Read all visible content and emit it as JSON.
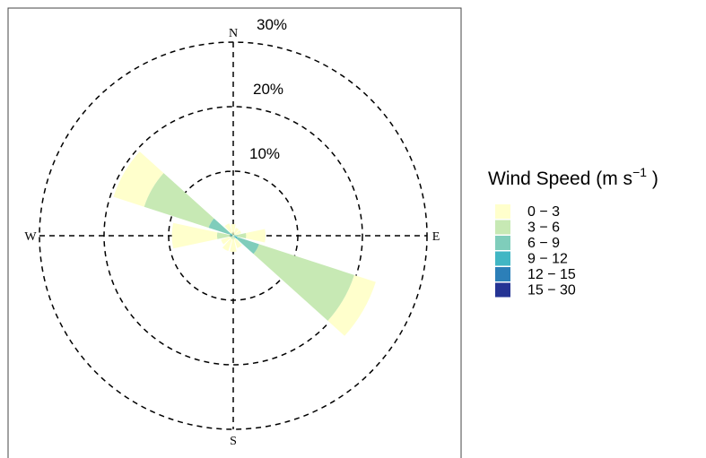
{
  "chart_data": {
    "type": "windrose",
    "compass": {
      "n": "N",
      "e": "E",
      "s": "S",
      "w": "W"
    },
    "rings": [
      {
        "value": 10,
        "label": "10%"
      },
      {
        "value": 20,
        "label": "20%"
      },
      {
        "value": 30,
        "label": "30%"
      }
    ],
    "legend": {
      "title_main": "Wind Speed (m s",
      "title_sup": "−1",
      "title_end": " )",
      "placement": "right"
    },
    "bins": [
      {
        "label": "0 − 3",
        "color": "#FFFFCC"
      },
      {
        "label": "3 − 6",
        "color": "#C7E9B4"
      },
      {
        "label": "6 − 9",
        "color": "#7FCDBB"
      },
      {
        "label": "9 − 12",
        "color": "#41B6C4"
      },
      {
        "label": "12 − 15",
        "color": "#2C7FB8"
      },
      {
        "label": "15 − 30",
        "color": "#253494"
      }
    ],
    "directions": [
      {
        "angle": 0,
        "values": [
          1.5,
          0.3,
          0,
          0,
          0,
          0
        ]
      },
      {
        "angle": 30,
        "values": [
          1.0,
          0.3,
          0,
          0,
          0,
          0
        ]
      },
      {
        "angle": 60,
        "values": [
          1.0,
          0.3,
          0,
          0,
          0,
          0
        ]
      },
      {
        "angle": 90,
        "values": [
          3.0,
          1.5,
          0.5,
          0,
          0,
          0
        ]
      },
      {
        "angle": 120,
        "values": [
          3.5,
          15.5,
          3.5,
          0.7,
          0,
          0
        ]
      },
      {
        "angle": 150,
        "values": [
          1.5,
          0.5,
          0,
          0,
          0,
          0
        ]
      },
      {
        "angle": 180,
        "values": [
          2.0,
          0.5,
          0,
          0,
          0,
          0
        ]
      },
      {
        "angle": 210,
        "values": [
          2.0,
          0.5,
          0,
          0,
          0,
          0
        ]
      },
      {
        "angle": 240,
        "values": [
          1.5,
          0.5,
          0,
          0,
          0,
          0
        ]
      },
      {
        "angle": 270,
        "values": [
          7.0,
          2.0,
          0.5,
          0,
          0,
          0
        ]
      },
      {
        "angle": 300,
        "values": [
          5.0,
          10.5,
          3.5,
          0.5,
          0,
          0
        ]
      },
      {
        "angle": 330,
        "values": [
          1.5,
          0.5,
          0,
          0,
          0,
          0
        ]
      }
    ]
  }
}
